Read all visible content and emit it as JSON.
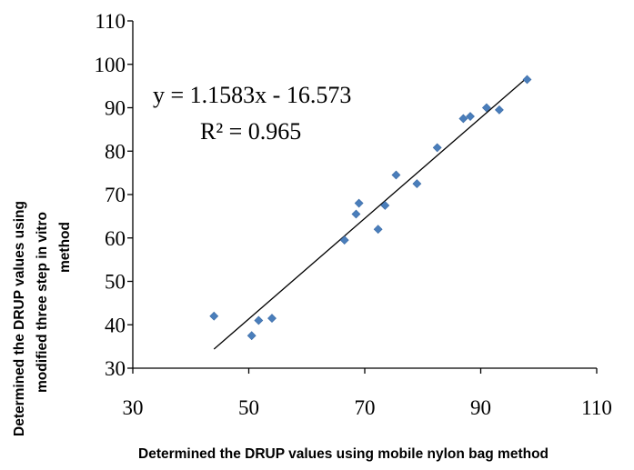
{
  "chart_data": {
    "type": "scatter",
    "title": "",
    "xlabel": "Determined the DRUP  values using mobile nylon bag method",
    "ylabel_lines": [
      "Determined the DRUP  values using",
      "modified  three step in vitro",
      "method"
    ],
    "xlim": [
      30,
      110
    ],
    "ylim": [
      30,
      110
    ],
    "xticks": [
      30,
      50,
      70,
      90,
      110
    ],
    "yticks": [
      30,
      40,
      50,
      60,
      70,
      80,
      90,
      100,
      110
    ],
    "grid": false,
    "legend": "none",
    "point_color": "#4a7ebb",
    "line_color": "#000000",
    "points": [
      {
        "x": 44.0,
        "y": 42.0
      },
      {
        "x": 50.5,
        "y": 37.5
      },
      {
        "x": 51.7,
        "y": 41.0
      },
      {
        "x": 54.0,
        "y": 41.5
      },
      {
        "x": 66.5,
        "y": 59.5
      },
      {
        "x": 68.5,
        "y": 65.5
      },
      {
        "x": 69.0,
        "y": 68.0
      },
      {
        "x": 72.3,
        "y": 62.0
      },
      {
        "x": 73.5,
        "y": 67.5
      },
      {
        "x": 75.4,
        "y": 74.5
      },
      {
        "x": 79.0,
        "y": 72.5
      },
      {
        "x": 82.5,
        "y": 80.8
      },
      {
        "x": 87.0,
        "y": 87.5
      },
      {
        "x": 88.2,
        "y": 88.0
      },
      {
        "x": 91.0,
        "y": 90.0
      },
      {
        "x": 93.2,
        "y": 89.5
      },
      {
        "x": 98.0,
        "y": 96.5
      }
    ],
    "trendline": {
      "slope": 1.1583,
      "intercept": -16.573,
      "x_range": [
        44,
        98
      ],
      "equation_label": "y = 1.1583x - 16.573",
      "r2_label": "R² = 0.965"
    }
  }
}
